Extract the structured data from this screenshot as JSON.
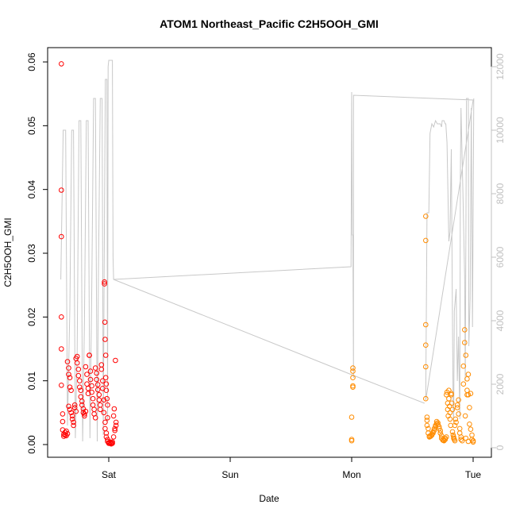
{
  "chart_data": {
    "type": "scatter",
    "title": "ATOM1 Northeast_Pacific C2H5OOH_GMI",
    "xlabel": "Date",
    "ylabel": "C2H5OOH_GMI",
    "x_unit": "days since Fri 00:00",
    "x_ticks": [
      {
        "label": "Sat",
        "value": 1
      },
      {
        "label": "Sun",
        "value": 2
      },
      {
        "label": "Mon",
        "value": 3
      },
      {
        "label": "Tue",
        "value": 4
      }
    ],
    "xlim": [
      0.55,
      4.08
    ],
    "y_ticks": [
      0,
      0.01,
      0.02,
      0.03,
      0.04,
      0.05,
      0.06
    ],
    "y_tick_labels": [
      "0.00",
      "0.01",
      "0.02",
      "0.03",
      "0.04",
      "0.05",
      "0.06"
    ],
    "ylim": [
      0,
      0.06
    ],
    "y2_ticks": [
      0,
      2000,
      4000,
      6000,
      8000,
      10000,
      12000
    ],
    "y2_tick_labels": [
      "0",
      "2000",
      "4000",
      "6000",
      "8000",
      "10000",
      "12000"
    ],
    "y2lim": [
      0,
      12500
    ],
    "grid": false,
    "legend": "none",
    "series": [
      {
        "color": "#ff0000",
        "marker": "open-circle",
        "axis": "left",
        "points": [
          [
            0.61,
            0.0597
          ],
          [
            0.61,
            0.0399
          ],
          [
            0.61,
            0.0326
          ],
          [
            0.61,
            0.02
          ],
          [
            0.61,
            0.015
          ],
          [
            0.61,
            0.0093
          ],
          [
            0.62,
            0.0048
          ],
          [
            0.62,
            0.0036
          ],
          [
            0.62,
            0.0023
          ],
          [
            0.63,
            0.0016
          ],
          [
            0.63,
            0.0013
          ],
          [
            0.64,
            0.0015
          ],
          [
            0.64,
            0.0019
          ],
          [
            0.65,
            0.0021
          ],
          [
            0.65,
            0.0014
          ],
          [
            0.66,
            0.0017
          ],
          [
            0.66,
            0.013
          ],
          [
            0.67,
            0.012
          ],
          [
            0.67,
            0.011
          ],
          [
            0.68,
            0.0105
          ],
          [
            0.68,
            0.009
          ],
          [
            0.69,
            0.0085
          ],
          [
            0.67,
            0.006
          ],
          [
            0.68,
            0.0055
          ],
          [
            0.69,
            0.005
          ],
          [
            0.7,
            0.0045
          ],
          [
            0.7,
            0.004
          ],
          [
            0.71,
            0.0035
          ],
          [
            0.71,
            0.003
          ],
          [
            0.72,
            0.0058
          ],
          [
            0.72,
            0.0062
          ],
          [
            0.73,
            0.0052
          ],
          [
            0.73,
            0.0135
          ],
          [
            0.74,
            0.0138
          ],
          [
            0.74,
            0.0128
          ],
          [
            0.75,
            0.0118
          ],
          [
            0.75,
            0.0108
          ],
          [
            0.76,
            0.01
          ],
          [
            0.76,
            0.009
          ],
          [
            0.77,
            0.0085
          ],
          [
            0.77,
            0.0075
          ],
          [
            0.78,
            0.0068
          ],
          [
            0.78,
            0.0062
          ],
          [
            0.79,
            0.0056
          ],
          [
            0.79,
            0.005
          ],
          [
            0.8,
            0.0048
          ],
          [
            0.8,
            0.0045
          ],
          [
            0.81,
            0.0052
          ],
          [
            0.81,
            0.0122
          ],
          [
            0.82,
            0.011
          ],
          [
            0.82,
            0.0095
          ],
          [
            0.83,
            0.0088
          ],
          [
            0.83,
            0.008
          ],
          [
            0.84,
            0.014
          ],
          [
            0.84,
            0.014
          ],
          [
            0.85,
            0.0115
          ],
          [
            0.85,
            0.0102
          ],
          [
            0.86,
            0.0092
          ],
          [
            0.86,
            0.0082
          ],
          [
            0.87,
            0.0072
          ],
          [
            0.87,
            0.0062
          ],
          [
            0.88,
            0.0055
          ],
          [
            0.88,
            0.0048
          ],
          [
            0.89,
            0.0042
          ],
          [
            0.89,
            0.012
          ],
          [
            0.9,
            0.0112
          ],
          [
            0.9,
            0.0102
          ],
          [
            0.91,
            0.0094
          ],
          [
            0.91,
            0.0086
          ],
          [
            0.92,
            0.0078
          ],
          [
            0.92,
            0.007
          ],
          [
            0.93,
            0.0062
          ],
          [
            0.93,
            0.0055
          ],
          [
            0.94,
            0.0125
          ],
          [
            0.94,
            0.0118
          ],
          [
            0.95,
            0.01
          ],
          [
            0.95,
            0.0088
          ],
          [
            0.96,
            0.007
          ],
          [
            0.96,
            0.005
          ],
          [
            0.97,
            0.0035
          ],
          [
            0.97,
            0.0025
          ],
          [
            0.98,
            0.0018
          ],
          [
            0.98,
            0.0012
          ],
          [
            0.99,
            0.0008
          ],
          [
            0.99,
            0.0005
          ],
          [
            0.965,
            0.0255
          ],
          [
            0.965,
            0.0252
          ],
          [
            0.968,
            0.0192
          ],
          [
            0.97,
            0.0165
          ],
          [
            0.975,
            0.014
          ],
          [
            0.975,
            0.0105
          ],
          [
            0.98,
            0.0095
          ],
          [
            0.98,
            0.0085
          ],
          [
            0.985,
            0.0072
          ],
          [
            0.99,
            0.0062
          ],
          [
            0.99,
            0.0042
          ],
          [
            1.0,
            0.0003
          ],
          [
            1.0,
            0.0002
          ],
          [
            1.01,
            0.0004
          ],
          [
            1.01,
            0.0002
          ],
          [
            1.02,
            0.0003
          ],
          [
            1.02,
            0.0001
          ],
          [
            1.03,
            0.0002
          ],
          [
            1.03,
            0.0004
          ],
          [
            1.04,
            0.0012
          ],
          [
            1.04,
            0.0045
          ],
          [
            1.045,
            0.0056
          ],
          [
            1.05,
            0.0025
          ],
          [
            1.05,
            0.0022
          ],
          [
            1.055,
            0.0132
          ],
          [
            1.06,
            0.003
          ],
          [
            1.06,
            0.0035
          ]
        ]
      },
      {
        "color": "#ff8c00",
        "marker": "open-circle",
        "axis": "left",
        "points": [
          [
            3.01,
            0.012
          ],
          [
            3.01,
            0.0115
          ],
          [
            3.01,
            0.0105
          ],
          [
            3.01,
            0.0092
          ],
          [
            3.01,
            0.009
          ],
          [
            3.0,
            0.0043
          ],
          [
            3.0,
            0.0008
          ],
          [
            3.0,
            0.0006
          ],
          [
            3.61,
            0.0358
          ],
          [
            3.61,
            0.032
          ],
          [
            3.61,
            0.0188
          ],
          [
            3.61,
            0.0156
          ],
          [
            3.61,
            0.0122
          ],
          [
            3.61,
            0.0072
          ],
          [
            3.62,
            0.0043
          ],
          [
            3.62,
            0.0038
          ],
          [
            3.62,
            0.003
          ],
          [
            3.63,
            0.0025
          ],
          [
            3.63,
            0.0018
          ],
          [
            3.64,
            0.0013
          ],
          [
            3.64,
            0.0012
          ],
          [
            3.65,
            0.0014
          ],
          [
            3.65,
            0.0013
          ],
          [
            3.66,
            0.0016
          ],
          [
            3.66,
            0.0015
          ],
          [
            3.67,
            0.0018
          ],
          [
            3.67,
            0.002
          ],
          [
            3.68,
            0.0022
          ],
          [
            3.68,
            0.0025
          ],
          [
            3.69,
            0.0028
          ],
          [
            3.69,
            0.003
          ],
          [
            3.7,
            0.0033
          ],
          [
            3.7,
            0.0036
          ],
          [
            3.71,
            0.0034
          ],
          [
            3.71,
            0.0031
          ],
          [
            3.72,
            0.0028
          ],
          [
            3.72,
            0.0025
          ],
          [
            3.73,
            0.0022
          ],
          [
            3.73,
            0.0018
          ],
          [
            3.74,
            0.0014
          ],
          [
            3.74,
            0.001
          ],
          [
            3.75,
            0.0008
          ],
          [
            3.75,
            0.0007
          ],
          [
            3.76,
            0.0006
          ],
          [
            3.76,
            0.0007
          ],
          [
            3.77,
            0.0008
          ],
          [
            3.77,
            0.001
          ],
          [
            3.78,
            0.0012
          ],
          [
            3.78,
            0.0078
          ],
          [
            3.785,
            0.0082
          ],
          [
            3.79,
            0.0065
          ],
          [
            3.79,
            0.0055
          ],
          [
            3.795,
            0.0045
          ],
          [
            3.8,
            0.0085
          ],
          [
            3.8,
            0.0072
          ],
          [
            3.805,
            0.006
          ],
          [
            3.81,
            0.005
          ],
          [
            3.81,
            0.004
          ],
          [
            3.815,
            0.003
          ],
          [
            3.82,
            0.0078
          ],
          [
            3.82,
            0.008
          ],
          [
            3.825,
            0.0065
          ],
          [
            3.83,
            0.0055
          ],
          [
            3.83,
            0.002
          ],
          [
            3.835,
            0.0015
          ],
          [
            3.84,
            0.0012
          ],
          [
            3.84,
            0.001
          ],
          [
            3.845,
            0.0008
          ],
          [
            3.85,
            0.0006
          ],
          [
            3.85,
            0.003
          ],
          [
            3.855,
            0.004
          ],
          [
            3.86,
            0.0035
          ],
          [
            3.87,
            0.0058
          ],
          [
            3.87,
            0.0062
          ],
          [
            3.88,
            0.007
          ],
          [
            3.88,
            0.0048
          ],
          [
            3.89,
            0.0025
          ],
          [
            3.89,
            0.0018
          ],
          [
            3.9,
            0.0012
          ],
          [
            3.9,
            0.0008
          ],
          [
            3.91,
            0.0006
          ],
          [
            3.92,
            0.0123
          ],
          [
            3.92,
            0.0095
          ],
          [
            3.93,
            0.018
          ],
          [
            3.93,
            0.016
          ],
          [
            3.94,
            0.014
          ],
          [
            3.95,
            0.0103
          ],
          [
            3.95,
            0.0085
          ],
          [
            3.96,
            0.011
          ],
          [
            3.96,
            0.0078
          ],
          [
            3.97,
            0.0058
          ],
          [
            3.97,
            0.0032
          ],
          [
            3.98,
            0.008
          ],
          [
            3.98,
            0.0024
          ],
          [
            3.99,
            0.0015
          ],
          [
            3.99,
            0.0008
          ],
          [
            4.0,
            0.0004
          ],
          [
            4.0,
            0.0006
          ],
          [
            3.94,
            0.001
          ],
          [
            3.95,
            0.0078
          ],
          [
            3.935,
            0.0045
          ],
          [
            3.96,
            0.0005
          ]
        ]
      },
      {
        "color": "#c8c8c8",
        "marker": "line",
        "axis": "right",
        "points": [
          [
            0.605,
            5300
          ],
          [
            0.625,
            10000
          ],
          [
            0.645,
            10000
          ],
          [
            0.66,
            700
          ],
          [
            0.68,
            4400
          ],
          [
            0.695,
            10000
          ],
          [
            0.71,
            10000
          ],
          [
            0.725,
            300
          ],
          [
            0.74,
            3000
          ],
          [
            0.755,
            10300
          ],
          [
            0.77,
            10300
          ],
          [
            0.785,
            200
          ],
          [
            0.8,
            4000
          ],
          [
            0.815,
            10300
          ],
          [
            0.83,
            10300
          ],
          [
            0.845,
            300
          ],
          [
            0.86,
            5000
          ],
          [
            0.875,
            11000
          ],
          [
            0.89,
            11000
          ],
          [
            0.905,
            200
          ],
          [
            0.915,
            5500
          ],
          [
            0.93,
            11000
          ],
          [
            0.945,
            11000
          ],
          [
            0.955,
            400
          ],
          [
            0.963,
            6000
          ],
          [
            0.972,
            11600
          ],
          [
            0.985,
            11600
          ],
          [
            0.99,
            800
          ],
          [
            0.995,
            12000
          ],
          [
            1.0,
            12200
          ],
          [
            1.03,
            12200
          ],
          [
            1.035,
            6000
          ],
          [
            1.04,
            5300
          ],
          [
            2.995,
            5700
          ],
          [
            3.0,
            11200
          ],
          [
            3.005,
            6700
          ],
          [
            3.01,
            6700
          ],
          [
            3.015,
            2200
          ],
          [
            3.015,
            11100
          ],
          [
            4.0,
            10950
          ],
          [
            3.61,
            1500
          ],
          [
            3.62,
            7400
          ],
          [
            3.635,
            7400
          ],
          [
            3.645,
            9900
          ],
          [
            3.66,
            10200
          ],
          [
            3.675,
            10100
          ],
          [
            3.69,
            10300
          ],
          [
            3.705,
            10200
          ],
          [
            3.72,
            10200
          ],
          [
            3.73,
            10200
          ],
          [
            3.74,
            10100
          ],
          [
            3.745,
            10300
          ],
          [
            3.76,
            10300
          ],
          [
            3.77,
            10200
          ],
          [
            3.775,
            10200
          ],
          [
            3.785,
            9600
          ],
          [
            3.8,
            6500
          ],
          [
            3.81,
            6800
          ],
          [
            3.82,
            9400
          ],
          [
            3.83,
            3900
          ],
          [
            3.835,
            1400
          ],
          [
            3.84,
            800
          ],
          [
            3.845,
            4300
          ],
          [
            3.86,
            5000
          ],
          [
            3.87,
            2100
          ],
          [
            3.88,
            3500
          ],
          [
            3.89,
            900
          ],
          [
            3.895,
            8500
          ],
          [
            3.9,
            10700
          ],
          [
            3.915,
            8200
          ],
          [
            3.93,
            5400
          ],
          [
            3.935,
            2100
          ],
          [
            3.945,
            11000
          ],
          [
            3.96,
            11000
          ],
          [
            3.965,
            3200
          ],
          [
            3.975,
            4700
          ],
          [
            3.985,
            10700
          ],
          [
            3.995,
            3800
          ],
          [
            4.005,
            11000
          ]
        ]
      },
      {
        "color": "#c8c8c8",
        "marker": "line",
        "axis": "right",
        "points": [
          [
            1.04,
            5300
          ],
          [
            3.0,
            2300
          ],
          [
            3.6,
            1400
          ]
        ]
      }
    ]
  }
}
